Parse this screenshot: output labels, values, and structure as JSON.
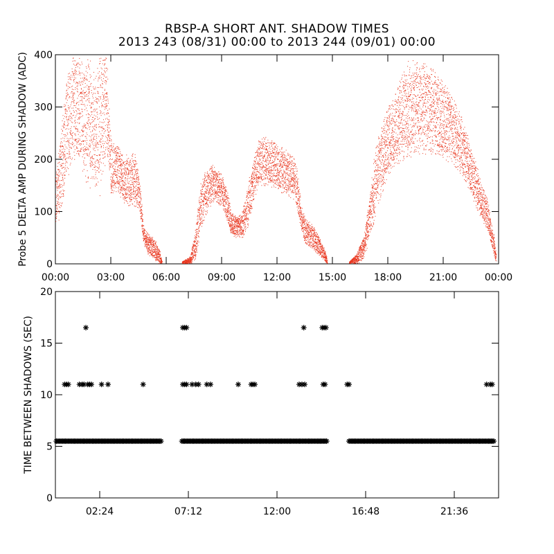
{
  "title": "RBSP-A SHORT ANT. SHADOW TIMES",
  "subtitle": "2013 243 (08/31) 00:00 to 2013 244 (09/01) 00:00",
  "colors": {
    "top_points": "#e8341c",
    "bottom_points": "#000000",
    "axes": "#000000"
  },
  "chart_data": [
    {
      "type": "scatter",
      "ylabel": "Probe 5 DELTA AMP DURING SHADOW (ADC)",
      "xlabel": "",
      "x_unit": "hours",
      "xlim": [
        0,
        24
      ],
      "ylim": [
        0,
        400
      ],
      "xticks": [
        0,
        3,
        6,
        9,
        12,
        15,
        18,
        21,
        24
      ],
      "xtick_labels": [
        "00:00",
        "03:00",
        "06:00",
        "09:00",
        "12:00",
        "15:00",
        "18:00",
        "21:00",
        "00:00"
      ],
      "yticks": [
        0,
        100,
        200,
        300,
        400
      ],
      "ytick_labels": [
        "0",
        "100",
        "200",
        "300",
        "400"
      ],
      "grid": false,
      "series": [
        {
          "marker": "dot",
          "color": "#e8341c",
          "envelope_hours": [
            0.0,
            0.2,
            0.5,
            0.8,
            1.2,
            1.5,
            1.8,
            2.1,
            2.4,
            2.75,
            3.0,
            3.3,
            3.6,
            4.0,
            4.3,
            4.55,
            4.75,
            4.95,
            5.3,
            5.6,
            5.75
          ],
          "envelope_low": [
            60,
            90,
            140,
            190,
            210,
            170,
            140,
            150,
            130,
            200,
            130,
            140,
            120,
            110,
            110,
            100,
            40,
            20,
            10,
            0,
            0
          ],
          "envelope_high": [
            180,
            230,
            330,
            400,
            400,
            380,
            400,
            360,
            400,
            400,
            240,
            230,
            210,
            210,
            220,
            160,
            70,
            60,
            50,
            30,
            5
          ],
          "segments_hours": [
            [
              0.0,
              5.75
            ],
            [
              6.85,
              14.7
            ],
            [
              15.9,
              23.8
            ]
          ],
          "envelope_2_hours": [
            6.85,
            7.3,
            7.6,
            7.8,
            8.1,
            8.5,
            9.0,
            9.3,
            9.5,
            9.8,
            10.1,
            10.4,
            10.7,
            11.0,
            11.5,
            12.0,
            12.5,
            13.0,
            13.3,
            13.5,
            14.0,
            14.3,
            14.6,
            14.7
          ],
          "envelope_2_low": [
            0,
            0,
            10,
            60,
            90,
            120,
            110,
            80,
            55,
            50,
            50,
            70,
            120,
            150,
            150,
            140,
            130,
            120,
            60,
            40,
            25,
            15,
            5,
            0
          ],
          "envelope_2_high": [
            5,
            15,
            80,
            150,
            180,
            190,
            170,
            140,
            100,
            90,
            100,
            150,
            200,
            250,
            240,
            230,
            220,
            200,
            110,
            90,
            70,
            50,
            25,
            10
          ],
          "envelope_3_hours": [
            15.9,
            16.3,
            16.7,
            17.0,
            17.3,
            17.6,
            18.0,
            18.5,
            19.0,
            19.5,
            20.0,
            20.5,
            21.0,
            21.5,
            22.0,
            22.5,
            23.0,
            23.4,
            23.7,
            23.85
          ],
          "envelope_3_low": [
            0,
            0,
            10,
            50,
            90,
            130,
            170,
            190,
            200,
            210,
            210,
            210,
            200,
            190,
            170,
            130,
            90,
            60,
            20,
            0
          ],
          "envelope_3_high": [
            5,
            20,
            60,
            130,
            220,
            260,
            300,
            340,
            390,
            390,
            385,
            370,
            350,
            320,
            280,
            230,
            160,
            120,
            60,
            20
          ]
        }
      ]
    },
    {
      "type": "scatter",
      "ylabel": "TIME BETWEEN SHADOWS (SEC)",
      "xlabel": "",
      "x_unit": "hours",
      "xlim": [
        0,
        24
      ],
      "ylim": [
        0,
        20
      ],
      "xticks": [
        2.4,
        7.2,
        12.0,
        16.8,
        21.6
      ],
      "xtick_labels": [
        "02:24",
        "07:12",
        "12:00",
        "16:48",
        "21:36"
      ],
      "yticks": [
        0,
        5,
        10,
        15,
        20
      ],
      "ytick_labels": [
        "0",
        "5",
        "10",
        "15",
        "20"
      ],
      "grid": false,
      "series": [
        {
          "name": "",
          "marker": "asterisk",
          "color": "#000000",
          "baseline_value": 5.5,
          "baseline_segments_hours": [
            [
              0.05,
              5.75
            ],
            [
              6.85,
              14.7
            ],
            [
              15.9,
              23.75
            ]
          ],
          "points": [
            [
              0.5,
              11
            ],
            [
              0.6,
              11
            ],
            [
              0.7,
              11
            ],
            [
              1.3,
              11
            ],
            [
              1.45,
              11
            ],
            [
              1.55,
              11
            ],
            [
              1.75,
              11
            ],
            [
              1.85,
              11
            ],
            [
              1.95,
              11
            ],
            [
              1.65,
              16.5
            ],
            [
              2.5,
              11
            ],
            [
              2.85,
              11
            ],
            [
              4.75,
              11
            ],
            [
              6.9,
              11
            ],
            [
              7.0,
              11
            ],
            [
              7.1,
              11
            ],
            [
              6.9,
              16.5
            ],
            [
              7.0,
              16.5
            ],
            [
              7.1,
              16.5
            ],
            [
              7.4,
              11
            ],
            [
              7.6,
              11
            ],
            [
              7.75,
              11
            ],
            [
              8.2,
              11
            ],
            [
              8.4,
              11
            ],
            [
              9.9,
              11
            ],
            [
              10.6,
              11
            ],
            [
              10.7,
              11
            ],
            [
              10.8,
              11
            ],
            [
              13.2,
              11
            ],
            [
              13.35,
              11
            ],
            [
              13.5,
              11
            ],
            [
              13.45,
              16.5
            ],
            [
              14.5,
              11
            ],
            [
              14.6,
              11
            ],
            [
              14.45,
              16.5
            ],
            [
              14.55,
              16.5
            ],
            [
              14.65,
              16.5
            ],
            [
              15.8,
              11
            ],
            [
              15.9,
              11
            ],
            [
              23.35,
              11
            ],
            [
              23.55,
              11
            ],
            [
              23.65,
              11
            ]
          ]
        }
      ]
    }
  ]
}
